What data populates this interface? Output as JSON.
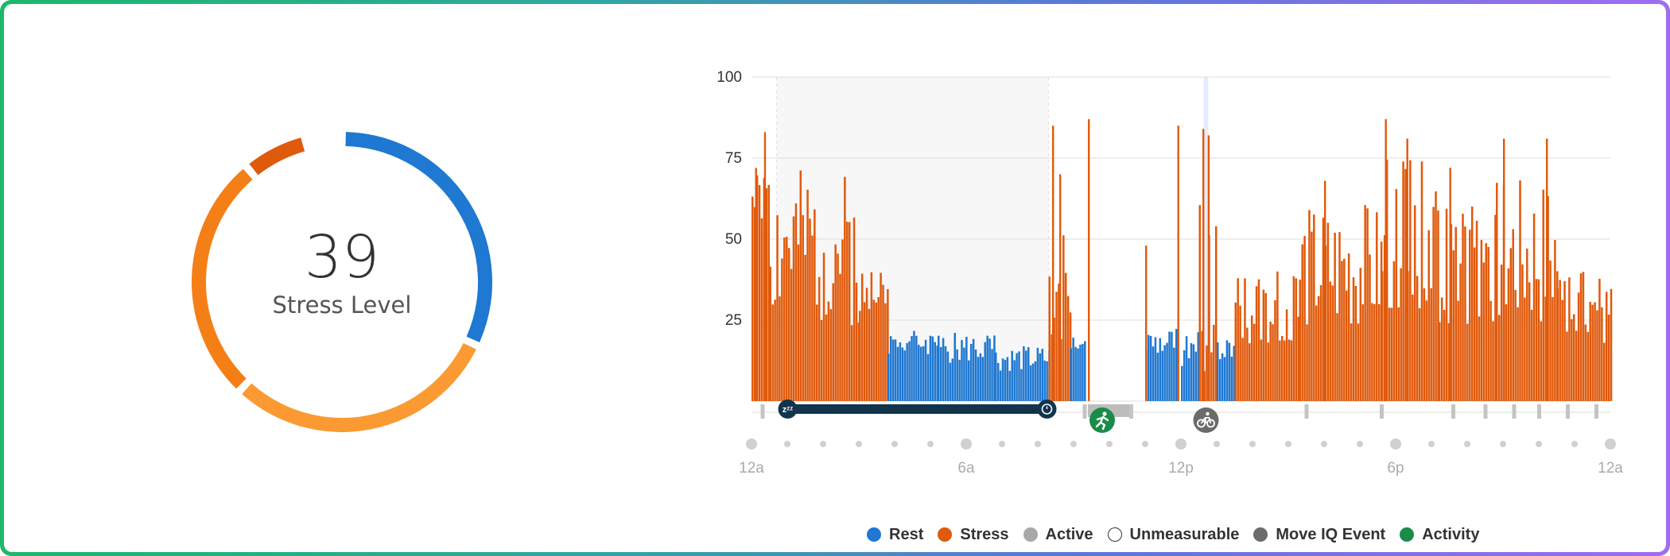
{
  "summary": {
    "value": "39",
    "label": "Stress Level"
  },
  "colors": {
    "rest": "#1f78d1",
    "stress": "#e05a0c",
    "active": "#a8a8a8",
    "move_iq": "#6b6b6b",
    "activity": "#1a8c4a",
    "sleep_bar": "#12344d",
    "sleep_bg": "#f7f7f7"
  },
  "ring_segments": [
    {
      "name": "rest",
      "color": "#1f78d1",
      "fraction": 0.32
    },
    {
      "name": "low",
      "color": "#fb9a33",
      "fraction": 0.3
    },
    {
      "name": "medium",
      "color": "#f57f17",
      "fraction": 0.27
    },
    {
      "name": "high",
      "color": "#e05a0c",
      "fraction": 0.07
    }
  ],
  "legend": [
    {
      "label": "Rest",
      "color": "#1f78d1",
      "style": "filled"
    },
    {
      "label": "Stress",
      "color": "#e05a0c",
      "style": "filled"
    },
    {
      "label": "Active",
      "color": "#a8a8a8",
      "style": "filled"
    },
    {
      "label": "Unmeasurable",
      "color": "#333333",
      "style": "outline"
    },
    {
      "label": "Move IQ Event",
      "color": "#6b6b6b",
      "style": "filled"
    },
    {
      "label": "Activity",
      "color": "#1a8c4a",
      "style": "filled"
    }
  ],
  "chart_data": {
    "type": "bar",
    "ylim": [
      0,
      100
    ],
    "yticks": [
      25,
      50,
      75,
      100
    ],
    "xlim": [
      0,
      24
    ],
    "xticks": [
      {
        "hour": 0,
        "label": "12a"
      },
      {
        "hour": 6,
        "label": "6a"
      },
      {
        "hour": 12,
        "label": "12p"
      },
      {
        "hour": 18,
        "label": "6p"
      },
      {
        "hour": 24,
        "label": "12a"
      }
    ],
    "sleep": {
      "start": 0.7,
      "end": 8.3
    },
    "highlight_hour": 12.7,
    "stress_spikes": [
      {
        "hour": 0.1,
        "value": 72
      },
      {
        "hour": 0.35,
        "value": 83
      },
      {
        "hour": 8.4,
        "value": 85
      },
      {
        "hour": 8.6,
        "value": 70
      },
      {
        "hour": 9.4,
        "value": 87
      },
      {
        "hour": 11.0,
        "value": 48
      },
      {
        "hour": 11.9,
        "value": 85
      },
      {
        "hour": 12.6,
        "value": 84
      },
      {
        "hour": 12.75,
        "value": 82
      },
      {
        "hour": 16.0,
        "value": 68
      },
      {
        "hour": 17.7,
        "value": 87
      },
      {
        "hour": 18.3,
        "value": 81
      },
      {
        "hour": 19.5,
        "value": 72
      },
      {
        "hour": 21.0,
        "value": 81
      },
      {
        "hour": 22.2,
        "value": 81
      }
    ],
    "segments": [
      {
        "type": "stress",
        "start": 0.0,
        "end": 0.5,
        "base": 60,
        "peak": 10,
        "seed": 1
      },
      {
        "type": "stress",
        "start": 0.5,
        "end": 3.0,
        "base": 40,
        "peak": 30,
        "seed": 2
      },
      {
        "type": "stress",
        "start": 3.0,
        "end": 3.8,
        "base": 30,
        "peak": 10,
        "seed": 3
      },
      {
        "type": "rest",
        "start": 3.8,
        "end": 5.2,
        "base": 17,
        "peak": 5,
        "seed": 4
      },
      {
        "type": "rest",
        "start": 5.2,
        "end": 6.8,
        "base": 15,
        "peak": 6,
        "seed": 5
      },
      {
        "type": "rest",
        "start": 6.8,
        "end": 8.3,
        "base": 12,
        "peak": 5,
        "seed": 6
      },
      {
        "type": "stress",
        "start": 8.3,
        "end": 8.9,
        "base": 30,
        "peak": 25,
        "seed": 7
      },
      {
        "type": "rest",
        "start": 8.9,
        "end": 9.3,
        "base": 16,
        "peak": 4,
        "seed": 8
      },
      {
        "type": "rest",
        "start": 11.0,
        "end": 11.9,
        "base": 17,
        "peak": 6,
        "seed": 9
      },
      {
        "type": "rest",
        "start": 12.0,
        "end": 12.5,
        "base": 14,
        "peak": 7,
        "seed": 10
      },
      {
        "type": "stress",
        "start": 12.5,
        "end": 13.0,
        "base": 25,
        "peak": 40,
        "seed": 11
      },
      {
        "type": "rest",
        "start": 13.0,
        "end": 13.5,
        "base": 15,
        "peak": 5,
        "seed": 12
      },
      {
        "type": "stress",
        "start": 13.5,
        "end": 15.3,
        "base": 25,
        "peak": 15,
        "seed": 13
      },
      {
        "type": "stress",
        "start": 15.3,
        "end": 17.6,
        "base": 35,
        "peak": 25,
        "seed": 14
      },
      {
        "type": "stress",
        "start": 17.6,
        "end": 19.2,
        "base": 45,
        "peak": 30,
        "seed": 15
      },
      {
        "type": "stress",
        "start": 19.2,
        "end": 20.8,
        "base": 35,
        "peak": 25,
        "seed": 16
      },
      {
        "type": "stress",
        "start": 20.8,
        "end": 22.5,
        "base": 40,
        "peak": 30,
        "seed": 17
      },
      {
        "type": "stress",
        "start": 22.5,
        "end": 24.0,
        "base": 25,
        "peak": 15,
        "seed": 18
      }
    ],
    "active_periods": [
      {
        "start": 9.4,
        "end": 10.6
      }
    ],
    "unmeasurable_ticks": [
      0.3,
      9.3,
      10.6,
      15.5,
      17.6,
      19.6,
      20.5,
      21.3,
      22.0,
      22.8,
      23.6
    ],
    "events": [
      {
        "type": "activity",
        "hour": 9.8,
        "icon": "running-icon"
      },
      {
        "type": "move_iq",
        "hour": 12.7,
        "icon": "cycling-icon"
      }
    ]
  }
}
